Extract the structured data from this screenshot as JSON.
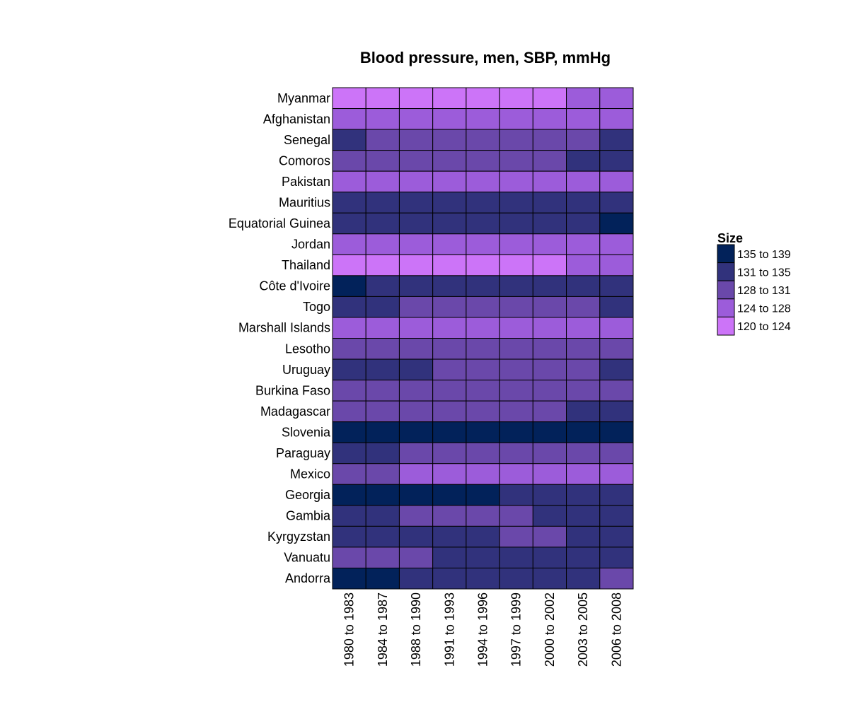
{
  "chart_data": {
    "type": "heatmap",
    "title": "Blood pressure, men, SBP, mmHg",
    "rows": [
      "Myanmar",
      "Afghanistan",
      "Senegal",
      "Comoros",
      "Pakistan",
      "Mauritius",
      "Equatorial Guinea",
      "Jordan",
      "Thailand",
      "Côte d'Ivoire",
      "Togo",
      "Marshall Islands",
      "Lesotho",
      "Uruguay",
      "Burkina Faso",
      "Madagascar",
      "Slovenia",
      "Paraguay",
      "Mexico",
      "Georgia",
      "Gambia",
      "Kyrgyzstan",
      "Vanuatu",
      "Andorra"
    ],
    "columns": [
      "1980 to 1983",
      "1984 to 1987",
      "1988 to 1990",
      "1991 to 1993",
      "1994 to 1996",
      "1997 to 1999",
      "2000 to 2002",
      "2003 to 2005",
      "2006 to 2008"
    ],
    "values": [
      [
        0,
        0,
        0,
        0,
        0,
        0,
        0,
        1,
        1
      ],
      [
        1,
        1,
        1,
        1,
        1,
        1,
        1,
        1,
        1
      ],
      [
        3,
        2,
        2,
        2,
        2,
        2,
        2,
        2,
        3
      ],
      [
        2,
        2,
        2,
        2,
        2,
        2,
        2,
        3,
        3
      ],
      [
        1,
        1,
        1,
        1,
        1,
        1,
        1,
        1,
        1
      ],
      [
        3,
        3,
        3,
        3,
        3,
        3,
        3,
        3,
        3
      ],
      [
        3,
        3,
        3,
        3,
        3,
        3,
        3,
        3,
        4
      ],
      [
        1,
        1,
        1,
        1,
        1,
        1,
        1,
        1,
        1
      ],
      [
        0,
        0,
        0,
        0,
        0,
        0,
        0,
        1,
        1
      ],
      [
        4,
        3,
        3,
        3,
        3,
        3,
        3,
        3,
        3
      ],
      [
        3,
        3,
        2,
        2,
        2,
        2,
        2,
        2,
        3
      ],
      [
        1,
        1,
        1,
        1,
        1,
        1,
        1,
        1,
        1
      ],
      [
        2,
        2,
        2,
        2,
        2,
        2,
        2,
        2,
        2
      ],
      [
        3,
        3,
        3,
        2,
        2,
        2,
        2,
        2,
        3
      ],
      [
        2,
        2,
        2,
        2,
        2,
        2,
        2,
        2,
        2
      ],
      [
        2,
        2,
        2,
        2,
        2,
        2,
        2,
        3,
        3
      ],
      [
        4,
        4,
        4,
        4,
        4,
        4,
        4,
        4,
        4
      ],
      [
        3,
        3,
        2,
        2,
        2,
        2,
        2,
        2,
        2
      ],
      [
        2,
        2,
        1,
        1,
        1,
        1,
        1,
        1,
        1
      ],
      [
        4,
        4,
        4,
        4,
        4,
        3,
        3,
        3,
        3
      ],
      [
        3,
        3,
        2,
        2,
        2,
        2,
        3,
        3,
        3
      ],
      [
        3,
        3,
        3,
        3,
        3,
        2,
        2,
        3,
        3
      ],
      [
        2,
        2,
        2,
        3,
        3,
        3,
        3,
        3,
        3
      ],
      [
        4,
        4,
        3,
        3,
        3,
        3,
        3,
        3,
        2
      ]
    ],
    "value_encoding": "index into legend.bins (0 = 120 to 124 ... 4 = 135 to 139)",
    "legend": {
      "title": "Size",
      "placement": "right",
      "bins": [
        {
          "label": "120  to  124",
          "color": "#CC74F8"
        },
        {
          "label": "124  to  128",
          "color": "#9C5CDA"
        },
        {
          "label": "128  to  131",
          "color": "#6A48AA"
        },
        {
          "label": "131  to  135",
          "color": "#31327C"
        },
        {
          "label": "135  to  139",
          "color": "#02225A"
        }
      ]
    }
  }
}
